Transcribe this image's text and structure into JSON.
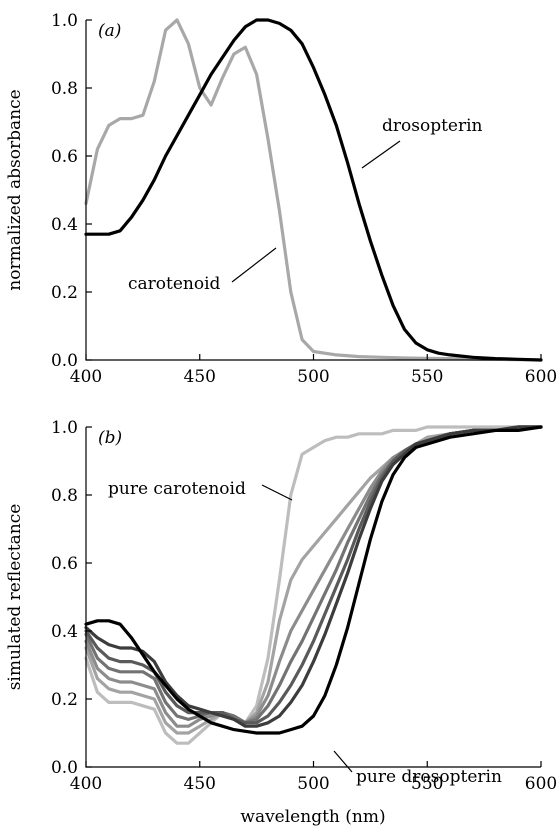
{
  "figure": {
    "xlabel": "wavelength (nm)"
  },
  "chart_data": [
    {
      "type": "line",
      "panel_label": "(a)",
      "xlabel": "",
      "ylabel": "normalized absorbance",
      "xlim": [
        400,
        600
      ],
      "ylim": [
        0,
        1.0
      ],
      "xticks": [
        "400",
        "450",
        "500",
        "550",
        "600"
      ],
      "yticks": [
        "0.0",
        "0.2",
        "0.4",
        "0.6",
        "0.8",
        "1.0"
      ],
      "grid": false,
      "series": [
        {
          "name": "carotenoid",
          "color": "#a8a8a8",
          "x": [
            400,
            405,
            410,
            415,
            420,
            425,
            430,
            435,
            440,
            445,
            450,
            455,
            460,
            465,
            470,
            475,
            480,
            485,
            490,
            495,
            500,
            510,
            520,
            530,
            540,
            550,
            560,
            570,
            580,
            590,
            600
          ],
          "y": [
            0.46,
            0.62,
            0.69,
            0.71,
            0.71,
            0.72,
            0.82,
            0.97,
            1.0,
            0.93,
            0.8,
            0.75,
            0.83,
            0.9,
            0.92,
            0.84,
            0.65,
            0.44,
            0.2,
            0.06,
            0.025,
            0.015,
            0.01,
            0.008,
            0.006,
            0.005,
            0.004,
            0.003,
            0.002,
            0.001,
            0.0
          ]
        },
        {
          "name": "drosopterin",
          "color": "#000000",
          "x": [
            400,
            405,
            410,
            415,
            420,
            425,
            430,
            435,
            440,
            445,
            450,
            455,
            460,
            465,
            470,
            475,
            480,
            485,
            490,
            495,
            500,
            505,
            510,
            515,
            520,
            525,
            530,
            535,
            540,
            545,
            550,
            555,
            560,
            570,
            580,
            590,
            600
          ],
          "y": [
            0.37,
            0.37,
            0.37,
            0.38,
            0.42,
            0.47,
            0.53,
            0.6,
            0.66,
            0.72,
            0.78,
            0.84,
            0.89,
            0.94,
            0.98,
            1.0,
            1.0,
            0.99,
            0.97,
            0.93,
            0.86,
            0.78,
            0.69,
            0.58,
            0.46,
            0.35,
            0.25,
            0.16,
            0.09,
            0.05,
            0.03,
            0.02,
            0.015,
            0.008,
            0.004,
            0.002,
            0.0
          ]
        }
      ],
      "annotations": [
        "drosopterin",
        "carotenoid"
      ]
    },
    {
      "type": "line",
      "panel_label": "(b)",
      "xlabel": "wavelength (nm)",
      "ylabel": "simulated reflectance",
      "xlim": [
        400,
        600
      ],
      "ylim": [
        0,
        1.0
      ],
      "xticks": [
        "400",
        "450",
        "500",
        "550",
        "600"
      ],
      "yticks": [
        "0.0",
        "0.2",
        "0.4",
        "0.6",
        "0.8",
        "1.0"
      ],
      "grid": false,
      "x": [
        400,
        405,
        410,
        415,
        420,
        425,
        430,
        435,
        440,
        445,
        450,
        455,
        460,
        465,
        470,
        475,
        480,
        485,
        490,
        495,
        500,
        505,
        510,
        515,
        520,
        525,
        530,
        535,
        540,
        545,
        550,
        560,
        570,
        580,
        590,
        600
      ],
      "series": [
        {
          "name": "pure carotenoid",
          "color": "#bdbdbd",
          "values": [
            0.32,
            0.22,
            0.19,
            0.19,
            0.19,
            0.18,
            0.17,
            0.1,
            0.07,
            0.07,
            0.1,
            0.13,
            0.16,
            0.15,
            0.13,
            0.18,
            0.32,
            0.55,
            0.8,
            0.92,
            0.94,
            0.96,
            0.97,
            0.97,
            0.98,
            0.98,
            0.98,
            0.99,
            0.99,
            0.99,
            1.0,
            1.0,
            1.0,
            1.0,
            1.0,
            1.0
          ]
        },
        {
          "color": "#a3a3a3",
          "values": [
            0.35,
            0.26,
            0.23,
            0.22,
            0.22,
            0.21,
            0.2,
            0.13,
            0.1,
            0.1,
            0.12,
            0.14,
            0.16,
            0.15,
            0.13,
            0.16,
            0.25,
            0.43,
            0.55,
            0.61,
            0.65,
            0.69,
            0.73,
            0.77,
            0.81,
            0.85,
            0.88,
            0.91,
            0.93,
            0.95,
            0.97,
            0.98,
            0.99,
            0.99,
            1.0,
            1.0
          ]
        },
        {
          "color": "#8c8c8c",
          "values": [
            0.37,
            0.29,
            0.26,
            0.25,
            0.25,
            0.24,
            0.23,
            0.16,
            0.12,
            0.12,
            0.14,
            0.15,
            0.16,
            0.15,
            0.13,
            0.15,
            0.21,
            0.31,
            0.4,
            0.46,
            0.52,
            0.58,
            0.64,
            0.7,
            0.76,
            0.82,
            0.87,
            0.91,
            0.93,
            0.95,
            0.96,
            0.98,
            0.99,
            0.99,
            1.0,
            1.0
          ]
        },
        {
          "color": "#737373",
          "values": [
            0.39,
            0.32,
            0.29,
            0.28,
            0.28,
            0.28,
            0.26,
            0.19,
            0.15,
            0.14,
            0.15,
            0.16,
            0.16,
            0.15,
            0.13,
            0.14,
            0.18,
            0.24,
            0.31,
            0.37,
            0.44,
            0.51,
            0.58,
            0.66,
            0.73,
            0.8,
            0.86,
            0.9,
            0.93,
            0.95,
            0.96,
            0.98,
            0.99,
            0.99,
            1.0,
            1.0
          ]
        },
        {
          "color": "#5a5a5a",
          "values": [
            0.4,
            0.35,
            0.32,
            0.31,
            0.31,
            0.3,
            0.28,
            0.22,
            0.18,
            0.16,
            0.16,
            0.16,
            0.16,
            0.14,
            0.13,
            0.13,
            0.15,
            0.19,
            0.24,
            0.3,
            0.37,
            0.45,
            0.53,
            0.61,
            0.7,
            0.78,
            0.85,
            0.9,
            0.93,
            0.95,
            0.96,
            0.98,
            0.99,
            0.99,
            1.0,
            1.0
          ]
        },
        {
          "color": "#3c3c3c",
          "values": [
            0.41,
            0.38,
            0.36,
            0.35,
            0.35,
            0.34,
            0.31,
            0.25,
            0.21,
            0.18,
            0.17,
            0.16,
            0.15,
            0.14,
            0.12,
            0.12,
            0.13,
            0.15,
            0.19,
            0.24,
            0.31,
            0.39,
            0.48,
            0.57,
            0.67,
            0.76,
            0.84,
            0.89,
            0.92,
            0.95,
            0.96,
            0.98,
            0.99,
            0.99,
            1.0,
            1.0
          ]
        },
        {
          "name": "pure drosopterin",
          "color": "#000000",
          "values": [
            0.42,
            0.43,
            0.43,
            0.42,
            0.38,
            0.33,
            0.28,
            0.24,
            0.2,
            0.17,
            0.15,
            0.13,
            0.12,
            0.11,
            0.105,
            0.1,
            0.1,
            0.1,
            0.11,
            0.12,
            0.15,
            0.21,
            0.3,
            0.41,
            0.54,
            0.67,
            0.78,
            0.86,
            0.91,
            0.94,
            0.95,
            0.97,
            0.98,
            0.99,
            0.99,
            1.0
          ]
        }
      ],
      "annotations": [
        "pure carotenoid",
        "pure drosopterin"
      ]
    }
  ]
}
